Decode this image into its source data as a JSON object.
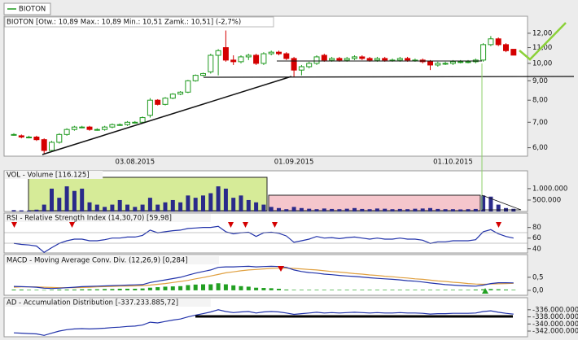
{
  "chart_data": [
    {
      "type": "candlestick",
      "name": "BIOTON",
      "title": "BIOTON [Otw.: 10,89 Max.: 10,89 Min.: 10,51 Zamk.: 10,51] (-2,7%)",
      "up_color": "#1f9a1f",
      "down_color": "#d40000",
      "log_y": true,
      "categories": [
        null,
        null,
        null,
        null,
        null,
        null,
        null,
        null,
        null,
        null,
        null,
        null,
        null,
        null,
        null,
        null,
        "03.08.2015",
        null,
        null,
        null,
        null,
        null,
        null,
        null,
        null,
        null,
        null,
        null,
        null,
        null,
        null,
        null,
        null,
        null,
        null,
        null,
        null,
        "01.09.2015",
        null,
        null,
        null,
        null,
        null,
        null,
        null,
        null,
        null,
        null,
        null,
        null,
        null,
        null,
        null,
        null,
        null,
        null,
        null,
        null,
        "01.10.2015",
        null,
        null,
        null,
        null,
        null,
        null,
        null,
        null
      ],
      "ohlc": [
        [
          6.5,
          6.55,
          6.45,
          6.5
        ],
        [
          6.45,
          6.5,
          6.35,
          6.4
        ],
        [
          6.4,
          6.45,
          6.35,
          6.4
        ],
        [
          6.4,
          6.45,
          6.25,
          6.3
        ],
        [
          6.3,
          6.35,
          5.8,
          5.9
        ],
        [
          5.9,
          6.25,
          5.85,
          6.2
        ],
        [
          6.2,
          6.55,
          6.15,
          6.5
        ],
        [
          6.5,
          6.75,
          6.45,
          6.7
        ],
        [
          6.7,
          6.85,
          6.65,
          6.8
        ],
        [
          6.8,
          6.85,
          6.75,
          6.8
        ],
        [
          6.8,
          6.85,
          6.65,
          6.7
        ],
        [
          6.7,
          6.75,
          6.65,
          6.7
        ],
        [
          6.7,
          6.85,
          6.65,
          6.8
        ],
        [
          6.8,
          6.95,
          6.75,
          6.9
        ],
        [
          6.9,
          6.95,
          6.85,
          6.9
        ],
        [
          6.9,
          7.05,
          6.85,
          7.0
        ],
        [
          7.0,
          7.05,
          6.95,
          7.0
        ],
        [
          7.0,
          7.25,
          6.95,
          7.2
        ],
        [
          7.3,
          8.1,
          7.2,
          8.0
        ],
        [
          8.0,
          8.05,
          7.75,
          7.8
        ],
        [
          7.8,
          8.15,
          7.75,
          8.1
        ],
        [
          8.1,
          8.35,
          8.05,
          8.3
        ],
        [
          8.3,
          8.45,
          8.25,
          8.4
        ],
        [
          8.4,
          9.05,
          8.35,
          9.0
        ],
        [
          9.0,
          9.35,
          8.95,
          9.3
        ],
        [
          9.3,
          9.45,
          9.25,
          9.4
        ],
        [
          9.5,
          10.6,
          9.4,
          10.5
        ],
        [
          10.5,
          10.9,
          9.3,
          10.8
        ],
        [
          11.0,
          12.2,
          10.1,
          10.2
        ],
        [
          10.2,
          10.5,
          9.9,
          10.1
        ],
        [
          10.1,
          10.5,
          10.0,
          10.4
        ],
        [
          10.4,
          10.6,
          10.2,
          10.5
        ],
        [
          10.5,
          10.6,
          9.9,
          10.0
        ],
        [
          10.0,
          10.7,
          9.9,
          10.6
        ],
        [
          10.6,
          10.8,
          10.5,
          10.7
        ],
        [
          10.7,
          10.8,
          10.5,
          10.6
        ],
        [
          10.6,
          10.7,
          10.2,
          10.3
        ],
        [
          10.3,
          10.4,
          9.2,
          9.6
        ],
        [
          9.6,
          9.9,
          9.3,
          9.8
        ],
        [
          9.8,
          10.1,
          9.7,
          10.0
        ],
        [
          10.0,
          10.5,
          9.9,
          10.4
        ],
        [
          10.5,
          10.6,
          10.1,
          10.2
        ],
        [
          10.2,
          10.4,
          10.1,
          10.3
        ],
        [
          10.3,
          10.4,
          10.1,
          10.2
        ],
        [
          10.2,
          10.4,
          10.1,
          10.3
        ],
        [
          10.3,
          10.5,
          10.2,
          10.4
        ],
        [
          10.4,
          10.5,
          10.2,
          10.3
        ],
        [
          10.3,
          10.4,
          10.1,
          10.2
        ],
        [
          10.2,
          10.4,
          10.1,
          10.3
        ],
        [
          10.3,
          10.4,
          10.1,
          10.2
        ],
        [
          10.2,
          10.3,
          10.1,
          10.2
        ],
        [
          10.2,
          10.4,
          10.1,
          10.3
        ],
        [
          10.3,
          10.4,
          10.1,
          10.2
        ],
        [
          10.2,
          10.3,
          10.1,
          10.2
        ],
        [
          10.2,
          10.3,
          10.0,
          10.1
        ],
        [
          10.1,
          10.2,
          9.6,
          9.9
        ],
        [
          9.9,
          10.1,
          9.8,
          10.0
        ],
        [
          10.0,
          10.1,
          9.9,
          10.0
        ],
        [
          10.0,
          10.2,
          9.9,
          10.1
        ],
        [
          10.1,
          10.2,
          10.0,
          10.1
        ],
        [
          10.1,
          10.2,
          10.0,
          10.1
        ],
        [
          10.1,
          10.3,
          10.0,
          10.2
        ],
        [
          10.2,
          11.3,
          10.1,
          11.2
        ],
        [
          11.2,
          11.8,
          11.1,
          11.6
        ],
        [
          11.6,
          11.7,
          11.1,
          11.2
        ],
        [
          11.2,
          11.3,
          10.7,
          10.8
        ],
        [
          10.89,
          10.89,
          10.51,
          10.51
        ]
      ],
      "ylim": [
        5.7,
        13.3
      ],
      "yticks": [
        {
          "value": 6,
          "label": "6,00"
        },
        {
          "value": 7,
          "label": "7,00"
        },
        {
          "value": 8,
          "label": "8,00"
        },
        {
          "value": 9,
          "label": "9,00"
        },
        {
          "value": 10,
          "label": "10,00"
        },
        {
          "value": 11,
          "label": "11,00"
        },
        {
          "value": 12,
          "label": "12,00"
        }
      ]
    },
    {
      "type": "bar",
      "title": "VOL - Volume [116.125]",
      "color": "#2a2a8a",
      "values": [
        60000,
        50000,
        40000,
        80000,
        300000,
        1000000,
        600000,
        1100000,
        900000,
        1000000,
        400000,
        300000,
        200000,
        300000,
        500000,
        300000,
        200000,
        300000,
        600000,
        300000,
        400000,
        500000,
        400000,
        700000,
        600000,
        700000,
        800000,
        1100000,
        1000000,
        600000,
        700000,
        500000,
        400000,
        300000,
        200000,
        150000,
        100000,
        200000,
        150000,
        120000,
        100000,
        130000,
        110000,
        100000,
        120000,
        150000,
        110000,
        100000,
        130000,
        120000,
        100000,
        110000,
        100000,
        120000,
        130000,
        150000,
        110000,
        100000,
        100000,
        90000,
        100000,
        110000,
        700000,
        650000,
        300000,
        150000,
        116125
      ],
      "ylim": [
        0,
        1780000
      ],
      "yticks": [
        {
          "value": 1000000,
          "label": "1.000.000"
        },
        {
          "value": 500000,
          "label": "500.000"
        }
      ]
    },
    {
      "type": "line",
      "title": "RSI - Relative Strength Index (14,30,70) [59,98]",
      "series": [
        {
          "color": "#2233aa",
          "values": [
            50,
            48,
            47,
            45,
            33,
            42,
            50,
            55,
            58,
            58,
            55,
            55,
            57,
            60,
            60,
            62,
            62,
            65,
            75,
            70,
            72,
            74,
            75,
            78,
            79,
            80,
            80,
            82,
            72,
            68,
            70,
            71,
            63,
            70,
            71,
            69,
            64,
            52,
            55,
            58,
            63,
            60,
            61,
            59,
            61,
            62,
            60,
            58,
            60,
            58,
            58,
            60,
            58,
            58,
            56,
            50,
            53,
            53,
            55,
            55,
            55,
            57,
            72,
            76,
            68,
            63,
            59.98
          ]
        }
      ],
      "ylim": [
        32,
        107
      ],
      "yticks": [
        80,
        60,
        40
      ]
    },
    {
      "type": "line",
      "title": "MACD - Moving Average Conv. Div. (12,26,9) [0,284]",
      "series": [
        {
          "style": "bar",
          "color": "#22a022",
          "values": [
            0.03,
            0.03,
            0.02,
            0.02,
            0.01,
            0.02,
            0.03,
            0.03,
            0.03,
            0.04,
            0.04,
            0.04,
            0.05,
            0.05,
            0.06,
            0.06,
            0.06,
            0.07,
            0.1,
            0.12,
            0.14,
            0.15,
            0.16,
            0.2,
            0.22,
            0.23,
            0.23,
            0.27,
            0.23,
            0.19,
            0.16,
            0.14,
            0.1,
            0.09,
            0.08,
            0.06,
            0.03,
            0.02,
            0.02,
            0.02,
            0.02,
            0.02,
            0.02,
            0.02,
            0.02,
            0.02,
            0.02,
            0.02,
            0.02,
            0.02,
            0.02,
            0.02,
            0.02,
            0.02,
            0.02,
            0.02,
            0.02,
            0.02,
            0.02,
            0.02,
            0.02,
            0.03,
            0.04,
            0.05,
            0.04,
            0.03,
            0.02
          ]
        },
        {
          "color": "#e0a040",
          "values": [
            0.12,
            0.13,
            0.13,
            0.13,
            0.12,
            0.11,
            0.1,
            0.1,
            0.1,
            0.11,
            0.12,
            0.13,
            0.14,
            0.15,
            0.16,
            0.16,
            0.17,
            0.18,
            0.2,
            0.23,
            0.26,
            0.3,
            0.34,
            0.38,
            0.44,
            0.49,
            0.55,
            0.61,
            0.67,
            0.71,
            0.75,
            0.78,
            0.8,
            0.82,
            0.84,
            0.85,
            0.85,
            0.84,
            0.82,
            0.8,
            0.78,
            0.75,
            0.72,
            0.7,
            0.67,
            0.64,
            0.62,
            0.59,
            0.57,
            0.54,
            0.52,
            0.49,
            0.47,
            0.44,
            0.42,
            0.39,
            0.36,
            0.34,
            0.31,
            0.29,
            0.26,
            0.24,
            0.23,
            0.24,
            0.25,
            0.26,
            0.27
          ]
        },
        {
          "color": "#2233aa",
          "values": [
            0.15,
            0.14,
            0.13,
            0.12,
            0.08,
            0.07,
            0.08,
            0.1,
            0.12,
            0.14,
            0.15,
            0.16,
            0.17,
            0.18,
            0.19,
            0.2,
            0.21,
            0.22,
            0.3,
            0.35,
            0.4,
            0.45,
            0.5,
            0.58,
            0.66,
            0.72,
            0.78,
            0.88,
            0.9,
            0.9,
            0.91,
            0.92,
            0.9,
            0.91,
            0.92,
            0.91,
            0.88,
            0.78,
            0.72,
            0.68,
            0.66,
            0.62,
            0.6,
            0.57,
            0.55,
            0.53,
            0.51,
            0.48,
            0.46,
            0.44,
            0.42,
            0.4,
            0.37,
            0.35,
            0.32,
            0.28,
            0.25,
            0.22,
            0.2,
            0.18,
            0.17,
            0.16,
            0.2,
            0.26,
            0.29,
            0.29,
            0.284
          ]
        }
      ],
      "ylim": [
        -0.19,
        1.37
      ],
      "yticks": [
        {
          "value": 0.5,
          "label": "0,5"
        },
        {
          "value": 0,
          "label": "0,0"
        }
      ]
    },
    {
      "type": "line",
      "title": "AD - Accumulation Distribution [-337.233.885,72]",
      "series": [
        {
          "color": "#2233aa",
          "values": [
            -342500000,
            -342600000,
            -342700000,
            -342800000,
            -343200000,
            -342600000,
            -342000000,
            -341600000,
            -341400000,
            -341300000,
            -341400000,
            -341300000,
            -341200000,
            -341000000,
            -340900000,
            -340700000,
            -340600000,
            -340300000,
            -339500000,
            -339700000,
            -339300000,
            -338900000,
            -338600000,
            -338000000,
            -337500000,
            -337100000,
            -336600000,
            -336000000,
            -336500000,
            -336800000,
            -336600000,
            -336500000,
            -336900000,
            -336600000,
            -336500000,
            -336600000,
            -336900000,
            -337300000,
            -337100000,
            -336900000,
            -336700000,
            -336900000,
            -336800000,
            -336900000,
            -336800000,
            -336700000,
            -336800000,
            -336900000,
            -336800000,
            -336900000,
            -336900000,
            -336800000,
            -336900000,
            -336900000,
            -337000000,
            -337200000,
            -337100000,
            -337100000,
            -337000000,
            -337000000,
            -337000000,
            -336900000,
            -336500000,
            -336300000,
            -336700000,
            -337000000,
            -337233885.72
          ]
        }
      ],
      "ylim": [
        -343600000,
        -332600000
      ],
      "yticks": [
        {
          "value": -336000000,
          "label": "-336.000.000"
        },
        {
          "value": -338000000,
          "label": "-338.000.000"
        },
        {
          "value": -340000000,
          "label": "-340.000.000"
        },
        {
          "value": -342000000,
          "label": "-342.000.000"
        }
      ]
    }
  ]
}
